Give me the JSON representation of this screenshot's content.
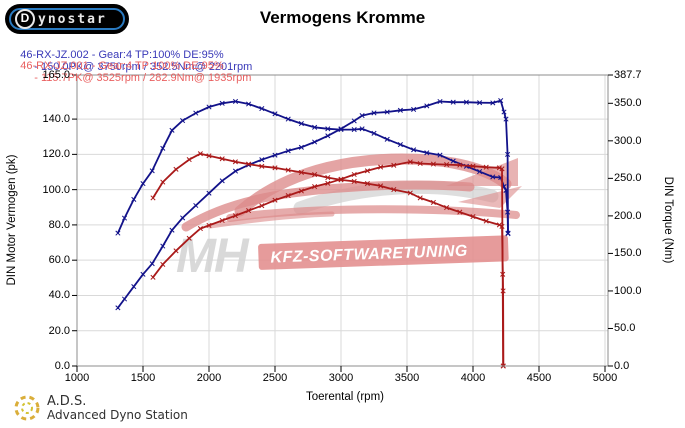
{
  "header": {
    "logo": {
      "d": "D",
      "rest": "ynostar"
    },
    "title": "Vermogens Kromme",
    "legend": [
      {
        "label": "46-RX-JZ.002 - Gear:4 TP:100% DE:95%",
        "result": "- 150.0PK@ 3750rpm / 352.5Nm@ 2201rpm",
        "color": "#3939b8"
      },
      {
        "label": "46-RX-JZ.001 - Gear:4 TP:100% DE:95%",
        "result": "- 115.7PK@ 3525rpm / 282.9Nm@ 1935rpm",
        "color": "#e96060"
      }
    ]
  },
  "watermark": {
    "mh": "MH",
    "banner": "KFZ-SOFTWARETUNING",
    "car_color": "#dc8a8a",
    "banner_color": "#e28d8d",
    "mh_color": "#d2d2d2"
  },
  "footer": {
    "abbr": "A.D.S.",
    "name": "Advanced Dyno Station"
  },
  "chart_data": {
    "type": "line",
    "title": "Vermogens Kromme",
    "xlabel": "Toerental (rpm)",
    "ylabel_left": "DIN Motor Vermogen (pk)",
    "ylabel_right": "DIN Torque (Nm)",
    "xlim": [
      1000,
      5000
    ],
    "ylim_left": [
      0,
      165
    ],
    "ylim_right": [
      0,
      387.7
    ],
    "x_ticks": [
      1000,
      1500,
      2000,
      2500,
      3000,
      3500,
      4000,
      4500,
      5000
    ],
    "y_left_ticks": [
      165.0,
      140.0,
      120.0,
      100.0,
      80.0,
      60.0,
      40.0,
      20.0,
      0.0
    ],
    "y_right_ticks": [
      387.7,
      350.0,
      300.0,
      250.0,
      200.0,
      150.0,
      100.0,
      50.0,
      0.0
    ],
    "grid": true,
    "colors": {
      "run_002": "#12128a",
      "run_001": "#aa1a1a"
    },
    "series": [
      {
        "name": "46-RX-JZ.002 power (pk)",
        "axis": "left",
        "color": "#12128a",
        "marker": "x",
        "points": [
          [
            1310,
            33
          ],
          [
            1360,
            38
          ],
          [
            1430,
            45
          ],
          [
            1500,
            52
          ],
          [
            1570,
            58
          ],
          [
            1650,
            68
          ],
          [
            1720,
            77
          ],
          [
            1800,
            84
          ],
          [
            1900,
            91
          ],
          [
            2000,
            98
          ],
          [
            2100,
            105
          ],
          [
            2201,
            110.5
          ],
          [
            2300,
            114
          ],
          [
            2400,
            117
          ],
          [
            2500,
            119.5
          ],
          [
            2600,
            122
          ],
          [
            2700,
            124
          ],
          [
            2800,
            127
          ],
          [
            2900,
            130.5
          ],
          [
            3000,
            134.5
          ],
          [
            3100,
            139
          ],
          [
            3160,
            142
          ],
          [
            3250,
            143.5
          ],
          [
            3350,
            144
          ],
          [
            3450,
            145
          ],
          [
            3550,
            145.5
          ],
          [
            3650,
            147.5
          ],
          [
            3750,
            150
          ],
          [
            3850,
            149.6
          ],
          [
            3950,
            149.6
          ],
          [
            4050,
            149.3
          ],
          [
            4150,
            149.2
          ],
          [
            4210,
            150.5
          ],
          [
            4235,
            144
          ],
          [
            4250,
            140
          ],
          [
            4262,
            120
          ],
          [
            4265,
            75
          ]
        ]
      },
      {
        "name": "46-RX-JZ.002 torque (Nm)",
        "axis": "right",
        "color": "#12128a",
        "marker": "x",
        "points": [
          [
            1310,
            177
          ],
          [
            1360,
            197
          ],
          [
            1430,
            222
          ],
          [
            1500,
            243
          ],
          [
            1570,
            260
          ],
          [
            1650,
            290
          ],
          [
            1720,
            314
          ],
          [
            1800,
            327
          ],
          [
            1900,
            337
          ],
          [
            2000,
            345
          ],
          [
            2100,
            350
          ],
          [
            2201,
            352.5
          ],
          [
            2300,
            349
          ],
          [
            2400,
            343
          ],
          [
            2500,
            336
          ],
          [
            2600,
            329
          ],
          [
            2700,
            323
          ],
          [
            2800,
            318
          ],
          [
            2900,
            316
          ],
          [
            3000,
            315
          ],
          [
            3100,
            315
          ],
          [
            3160,
            316
          ],
          [
            3250,
            310
          ],
          [
            3350,
            302
          ],
          [
            3450,
            295
          ],
          [
            3550,
            288
          ],
          [
            3650,
            284
          ],
          [
            3750,
            281
          ],
          [
            3850,
            273
          ],
          [
            3950,
            266
          ],
          [
            4050,
            259
          ],
          [
            4150,
            252
          ],
          [
            4210,
            251
          ],
          [
            4235,
            239
          ],
          [
            4250,
            234
          ],
          [
            4262,
            205
          ],
          [
            4265,
            177
          ]
        ]
      },
      {
        "name": "46-RX-JZ.001 power (pk)",
        "axis": "left",
        "color": "#aa1a1a",
        "marker": "x",
        "points": [
          [
            1576,
            50.3
          ],
          [
            1650,
            57.6
          ],
          [
            1750,
            65.3
          ],
          [
            1850,
            72.4
          ],
          [
            1935,
            77.9
          ],
          [
            2000,
            79.7
          ],
          [
            2100,
            82.5
          ],
          [
            2200,
            85.2
          ],
          [
            2300,
            88.1
          ],
          [
            2400,
            90.9
          ],
          [
            2500,
            94
          ],
          [
            2600,
            96.6
          ],
          [
            2700,
            99.2
          ],
          [
            2800,
            101.7
          ],
          [
            2900,
            103.6
          ],
          [
            3000,
            105.9
          ],
          [
            3100,
            108.6
          ],
          [
            3200,
            110.7
          ],
          [
            3300,
            112.8
          ],
          [
            3400,
            113.8
          ],
          [
            3525,
            115.7
          ],
          [
            3600,
            114.8
          ],
          [
            3700,
            114.5
          ],
          [
            3800,
            114.2
          ],
          [
            3900,
            113.9
          ],
          [
            4000,
            113.3
          ],
          [
            4100,
            112.7
          ],
          [
            4200,
            112.4
          ],
          [
            4220,
            111.8
          ],
          [
            4225,
            52
          ],
          [
            4228,
            0
          ]
        ]
      },
      {
        "name": "46-RX-JZ.001 torque (Nm)",
        "axis": "right",
        "color": "#aa1a1a",
        "marker": "x",
        "points": [
          [
            1576,
            224
          ],
          [
            1650,
            245
          ],
          [
            1750,
            262
          ],
          [
            1850,
            275
          ],
          [
            1935,
            282.9
          ],
          [
            2000,
            280
          ],
          [
            2100,
            276
          ],
          [
            2200,
            272
          ],
          [
            2300,
            269
          ],
          [
            2400,
            266
          ],
          [
            2500,
            264
          ],
          [
            2600,
            261
          ],
          [
            2700,
            258
          ],
          [
            2800,
            255
          ],
          [
            2900,
            251
          ],
          [
            3000,
            248
          ],
          [
            3100,
            246
          ],
          [
            3200,
            243
          ],
          [
            3300,
            240
          ],
          [
            3400,
            235
          ],
          [
            3525,
            230.5
          ],
          [
            3600,
            224
          ],
          [
            3700,
            218
          ],
          [
            3800,
            211
          ],
          [
            3900,
            205
          ],
          [
            4000,
            199
          ],
          [
            4100,
            193
          ],
          [
            4200,
            188
          ],
          [
            4220,
            186
          ],
          [
            4228,
            100
          ],
          [
            4230,
            0
          ]
        ]
      }
    ],
    "peaks": [
      {
        "run": "46-RX-JZ.002",
        "power_pk": 150.0,
        "power_rpm": 3750,
        "torque_nm": 352.5,
        "torque_rpm": 2201
      },
      {
        "run": "46-RX-JZ.001",
        "power_pk": 115.7,
        "power_rpm": 3525,
        "torque_nm": 282.9,
        "torque_rpm": 1935
      }
    ]
  }
}
